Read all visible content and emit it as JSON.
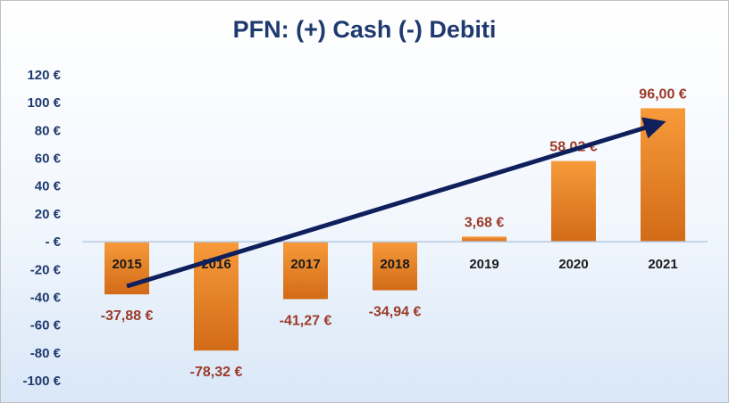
{
  "chart_data": {
    "type": "bar",
    "title": "PFN: (+) Cash (-) Debiti",
    "xlabel": "",
    "ylabel": "",
    "categories": [
      "2015",
      "2016",
      "2017",
      "2018",
      "2019",
      "2020",
      "2021"
    ],
    "values": [
      -37.88,
      -78.32,
      -41.27,
      -34.94,
      3.68,
      58.02,
      96.0
    ],
    "data_labels": [
      "-37,88 €",
      "-78,32 €",
      "-41,27 €",
      "-34,94 €",
      "3,68 €",
      "58,02 €",
      "96,00 €"
    ],
    "ylim": [
      -100,
      120
    ],
    "yticks": [
      120,
      100,
      80,
      60,
      40,
      20,
      0,
      -20,
      -40,
      -60,
      -80,
      -100
    ],
    "ytick_labels": [
      "120 €",
      "100 €",
      "80 €",
      "60 €",
      "40 €",
      "20 €",
      "- €",
      "-20 €",
      "-40 €",
      "-60 €",
      "-80 €",
      "-100 €"
    ],
    "grid": false,
    "legend": "none",
    "trend_arrow": {
      "from": [
        "2015",
        -32
      ],
      "to": [
        "2021",
        86
      ]
    },
    "colors": {
      "bar_top": "#f79a3b",
      "bar_bottom": "#d26b17",
      "title": "#1f3a6e",
      "axis_labels": "#1f3a6e",
      "data_labels": "#9b3a28",
      "arrow": "#0f1f5c"
    }
  }
}
